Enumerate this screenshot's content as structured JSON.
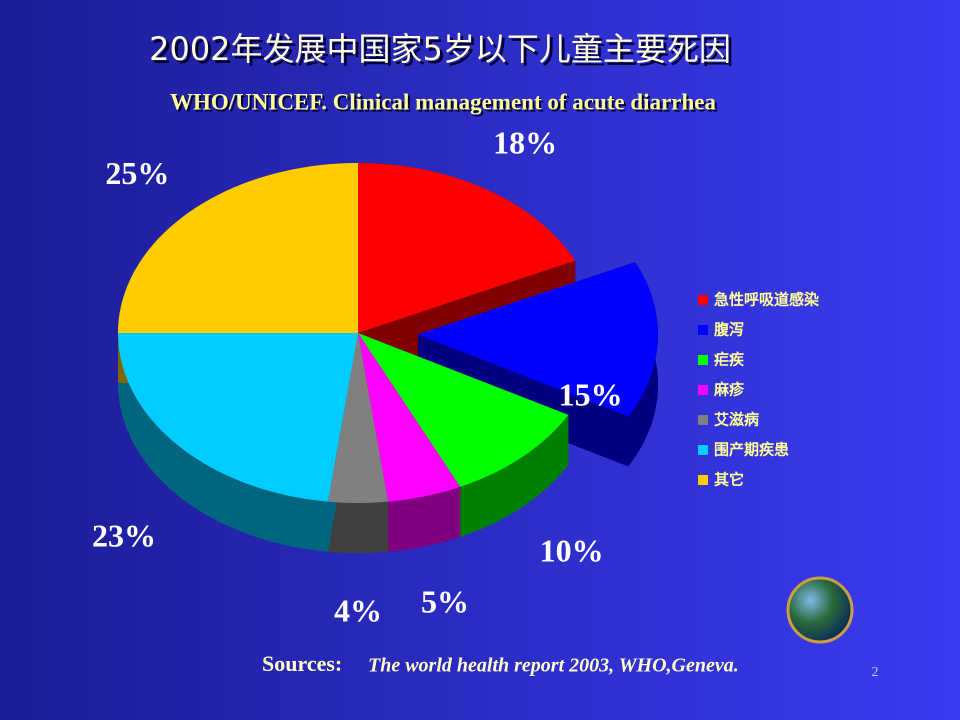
{
  "chart_data": {
    "type": "pie3d",
    "title": "2002年发展中国家5岁以下儿童主要死因",
    "subtitle": "WHO/UNICEF. Clinical management of acute diarrhea",
    "categories": [
      "急性呼吸道感染",
      "腹泻",
      "疟疾",
      "麻疹",
      "艾滋病",
      "围产期疾患",
      "其它"
    ],
    "values": [
      18,
      15,
      10,
      5,
      4,
      23,
      25
    ],
    "value_labels": [
      "18%",
      "15%",
      "10%",
      "5%",
      "4%",
      "23%",
      "25%"
    ],
    "colors": [
      "#ff0000",
      "#0000ff",
      "#00ff00",
      "#ff00ff",
      "#808080",
      "#00ccff",
      "#ffcc00"
    ],
    "exploded": [
      false,
      true,
      false,
      false,
      false,
      false,
      false
    ],
    "legend": "right"
  },
  "footer": {
    "source_label": "Sources:",
    "source_text": "The world health report 2003, WHO,Geneva.",
    "page_number": 2
  }
}
